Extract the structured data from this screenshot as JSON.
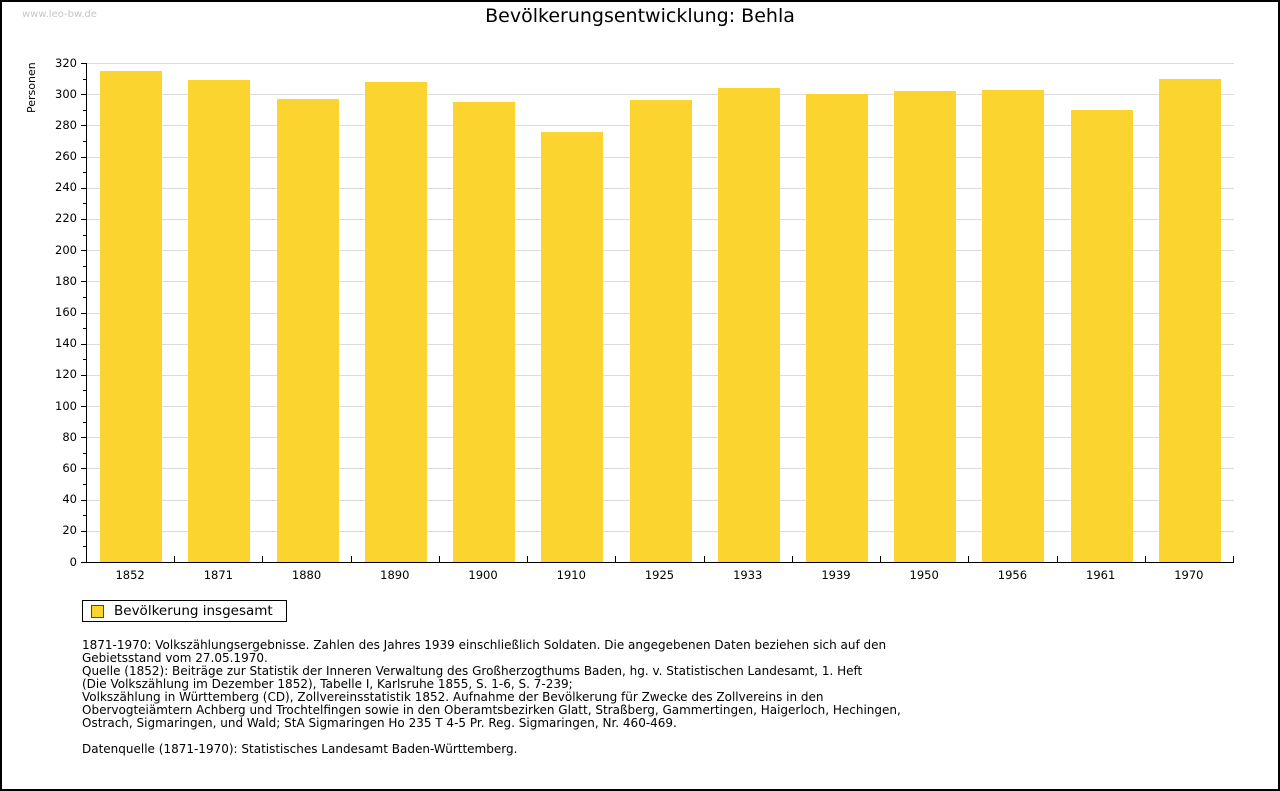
{
  "page": {
    "watermark": "www.leo-bw.de"
  },
  "chart_data": {
    "type": "bar",
    "title": "Bevölkerungsentwicklung: Behla",
    "ylabel": "Personen",
    "xlabel": "",
    "categories": [
      "1852",
      "1871",
      "1880",
      "1890",
      "1900",
      "1910",
      "1925",
      "1933",
      "1939",
      "1950",
      "1956",
      "1961",
      "1970"
    ],
    "values": [
      315,
      309,
      297,
      308,
      295,
      276,
      296,
      304,
      300,
      302,
      303,
      290,
      310
    ],
    "ylim": [
      0,
      320
    ],
    "ytick_major_step": 20,
    "ytick_minor_step": 10,
    "grid": true,
    "legend": {
      "label": "Bevölkerung insgesamt",
      "position": "bottom-left"
    },
    "colors": {
      "bar": "#FCD42F",
      "grid": "#DCDCDC",
      "axis": "#000000",
      "watermark": "#C6C6C6"
    }
  },
  "footer": {
    "lines": [
      "1871-1970: Volkszählungsergebnisse. Zahlen des Jahres 1939 einschließlich Soldaten. Die angegebenen Daten beziehen sich auf den",
      "Gebietsstand vom 27.05.1970.",
      "Quelle (1852): Beiträge zur Statistik der Inneren Verwaltung des Großherzogthums Baden, hg. v. Statistischen Landesamt, 1. Heft",
      "(Die Volkszählung im Dezember 1852), Tabelle I, Karlsruhe 1855, S. 1-6, S. 7-239;",
      "Volkszählung in Württemberg (CD), Zollvereinsstatistik 1852. Aufnahme der Bevölkerung für Zwecke des Zollvereins in den",
      "Obervogteiämtern Achberg und Trochtelfingen sowie in den Oberamtsbezirken Glatt, Straßberg, Gammertingen, Haigerloch, Hechingen,",
      "Ostrach, Sigmaringen, und Wald; StA Sigmaringen Ho 235 T 4-5 Pr. Reg. Sigmaringen, Nr. 460-469."
    ],
    "datasource": "Datenquelle (1871-1970): Statistisches Landesamt Baden-Württemberg."
  }
}
